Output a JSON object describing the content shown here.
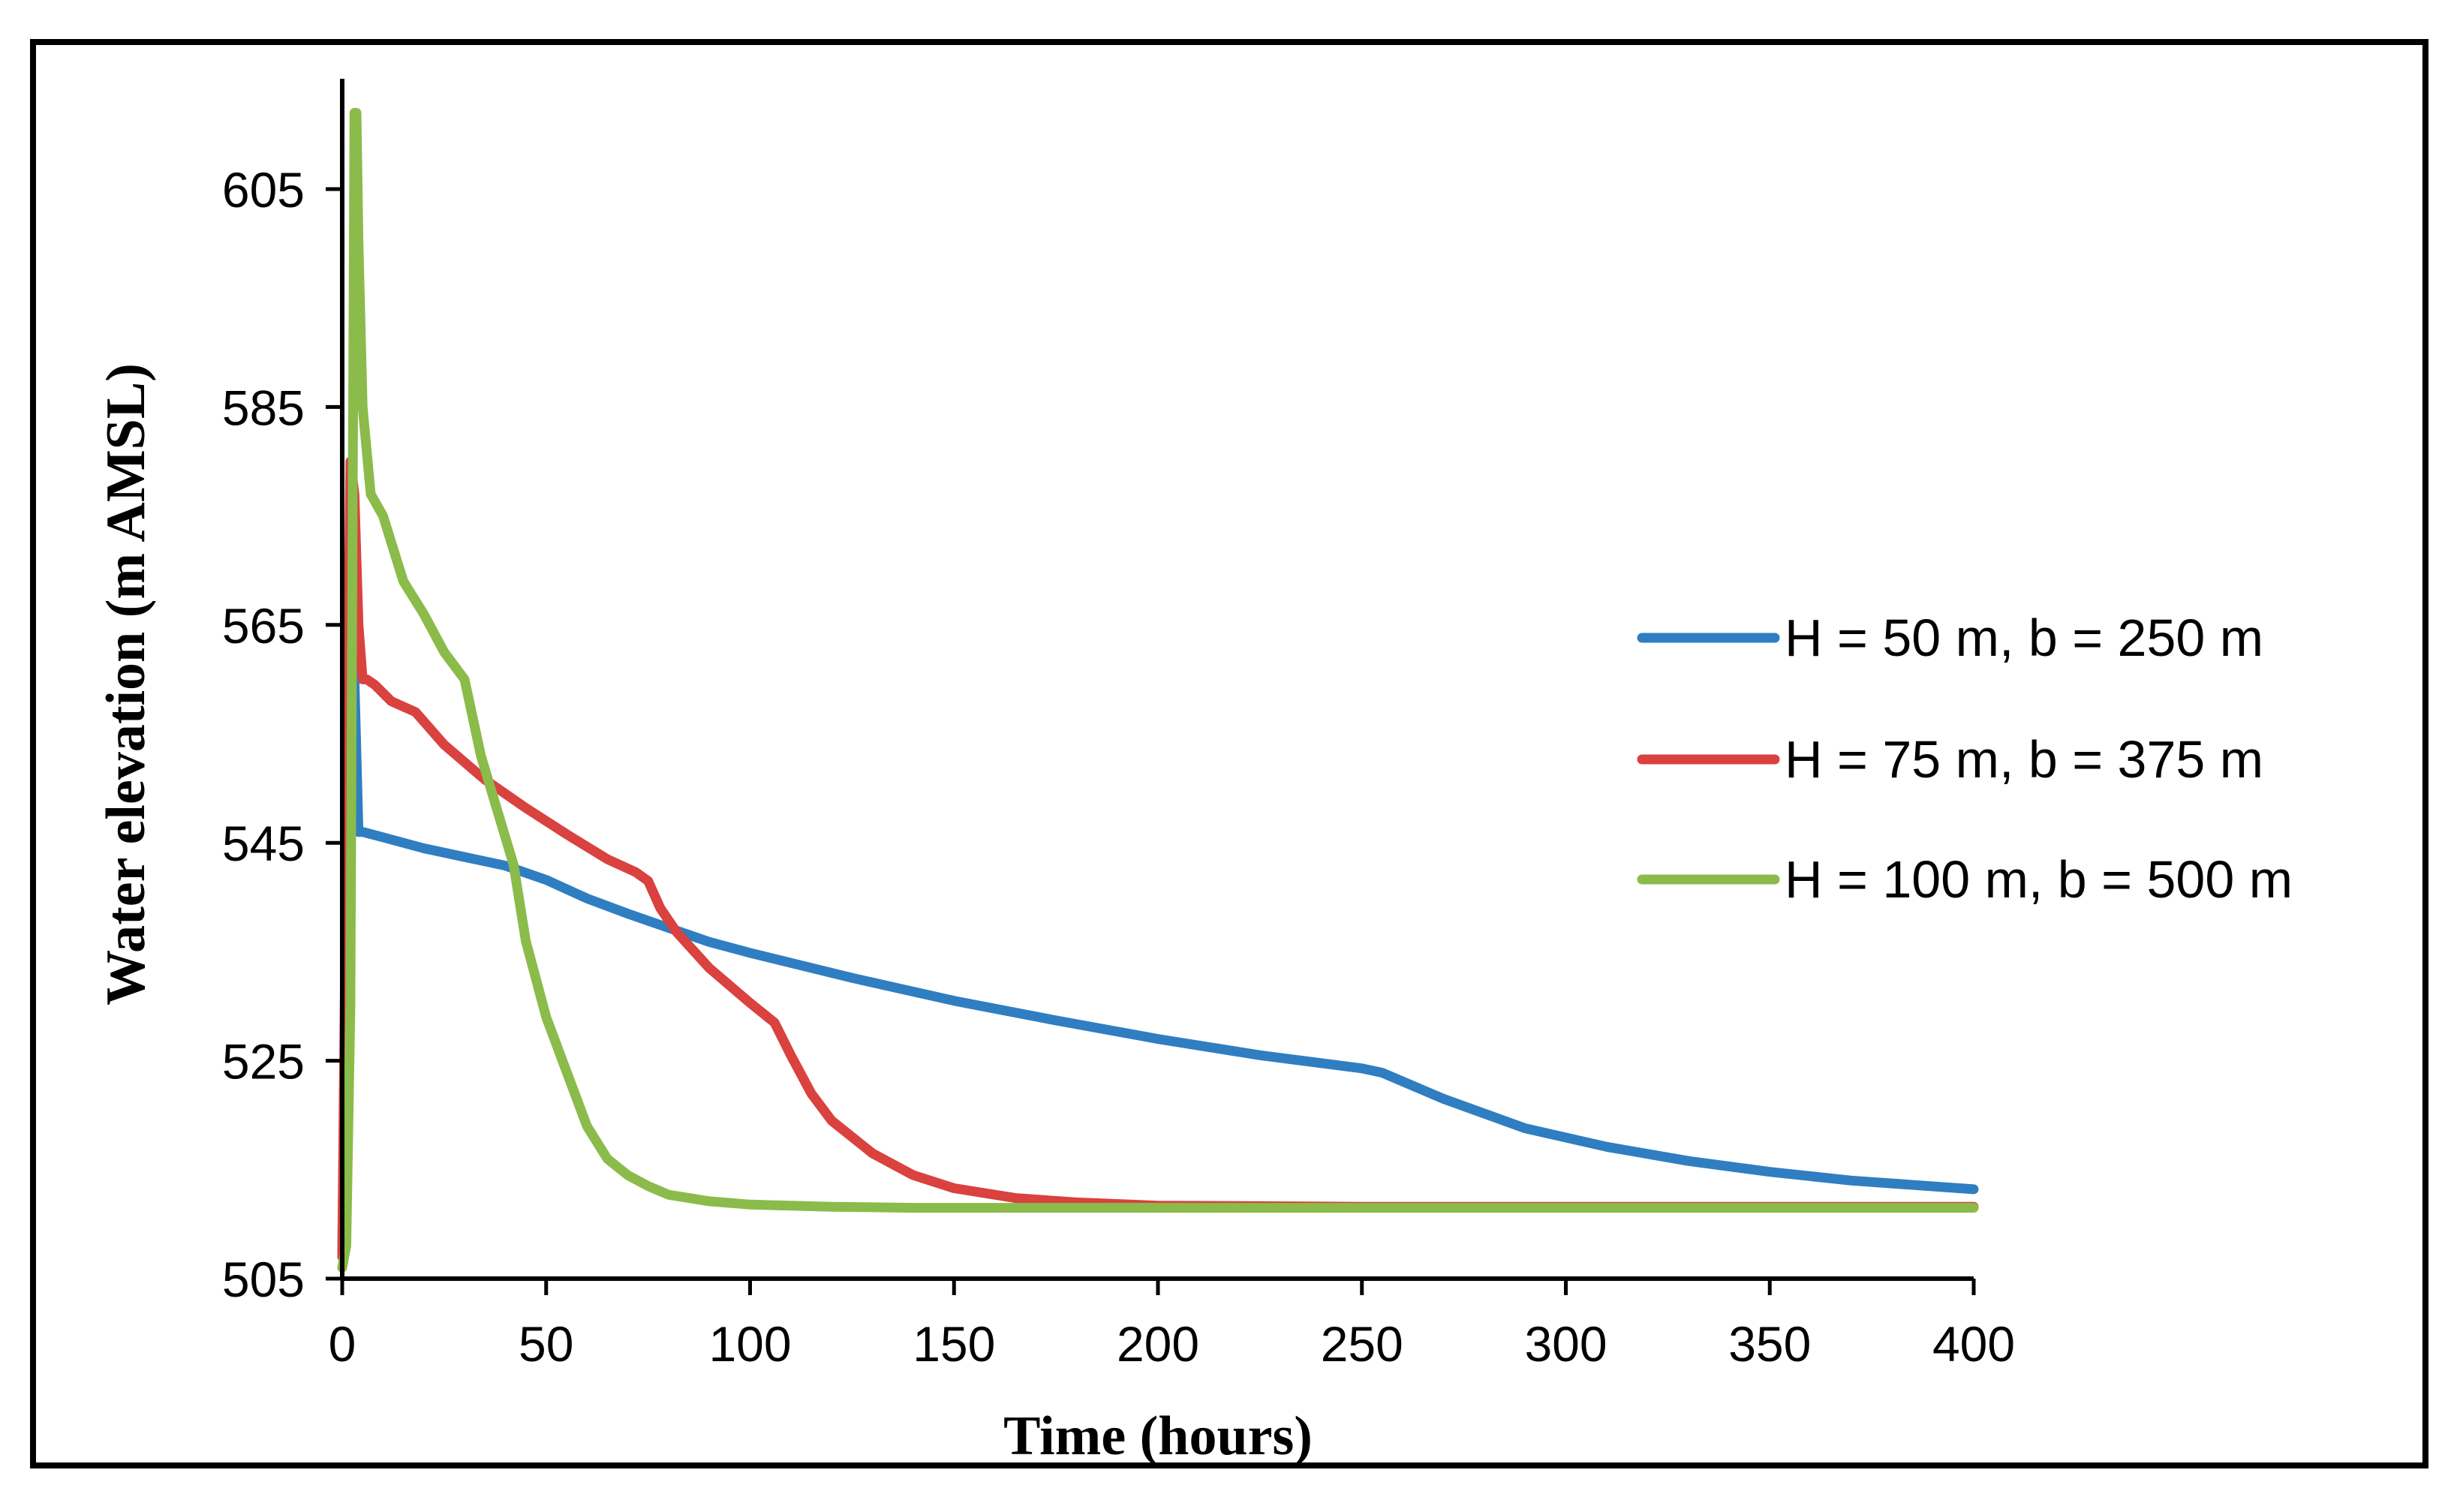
{
  "chart_data": {
    "type": "line",
    "title": "",
    "xlabel": "Time (hours)",
    "ylabel": "Water elevation (m AMSL)",
    "xlim": [
      0,
      400
    ],
    "ylim": [
      505,
      615
    ],
    "xticks": [
      0,
      50,
      100,
      150,
      200,
      250,
      300,
      350,
      400
    ],
    "yticks": [
      505,
      525,
      545,
      565,
      585,
      605
    ],
    "grid": false,
    "legend_position": "right",
    "series": [
      {
        "name": "H = 50 m, b = 250 m",
        "color": "#2F7EC1",
        "x": [
          0,
          1,
          2,
          3,
          4,
          5,
          10,
          20,
          30,
          40,
          50,
          60,
          70,
          80,
          90,
          100,
          125,
          150,
          175,
          200,
          225,
          250,
          255,
          270,
          290,
          310,
          330,
          350,
          370,
          400
        ],
        "y": [
          507,
          540,
          575,
          560,
          546,
          546,
          545.5,
          544.5,
          543.7,
          542.9,
          541.6,
          539.9,
          538.5,
          537.2,
          535.9,
          534.9,
          532.6,
          530.5,
          528.7,
          527.0,
          525.5,
          524.3,
          523.9,
          521.5,
          518.8,
          517.1,
          515.8,
          514.8,
          514.0,
          513.2
        ]
      },
      {
        "name": "H = 75 m, b = 375 m",
        "color": "#D9423E",
        "x": [
          0,
          1,
          2,
          3,
          4,
          5,
          6,
          8,
          12,
          18,
          25,
          35,
          45,
          55,
          65,
          72,
          75,
          78,
          82,
          90,
          100,
          106,
          110,
          115,
          120,
          130,
          140,
          150,
          165,
          180,
          200,
          250,
          300,
          350,
          400
        ],
        "y": [
          507,
          545,
          580,
          577,
          565,
          560,
          560,
          559.5,
          558,
          557,
          554,
          550.8,
          548.2,
          545.8,
          543.5,
          542.3,
          541.5,
          539,
          536.8,
          533.5,
          530.3,
          528.5,
          525.5,
          522,
          519.5,
          516.5,
          514.5,
          513.3,
          512.4,
          512,
          511.7,
          511.6,
          511.6,
          511.6,
          511.6
        ]
      },
      {
        "name": "H = 100 m, b = 500 m",
        "color": "#8BBB4A",
        "x": [
          0,
          1,
          2,
          3,
          3.5,
          4,
          5,
          7,
          10,
          15,
          20,
          25,
          30,
          34,
          38,
          42,
          45,
          50,
          55,
          60,
          65,
          70,
          75,
          80,
          90,
          100,
          120,
          140,
          200,
          300,
          400
        ],
        "y": [
          506,
          508,
          530,
          612,
          612,
          600,
          585,
          577,
          575,
          569,
          566,
          562.5,
          560,
          553,
          548,
          543,
          536,
          529,
          524,
          519,
          516,
          514.5,
          513.5,
          512.7,
          512.1,
          511.8,
          511.6,
          511.5,
          511.5,
          511.5,
          511.5
        ]
      }
    ]
  }
}
